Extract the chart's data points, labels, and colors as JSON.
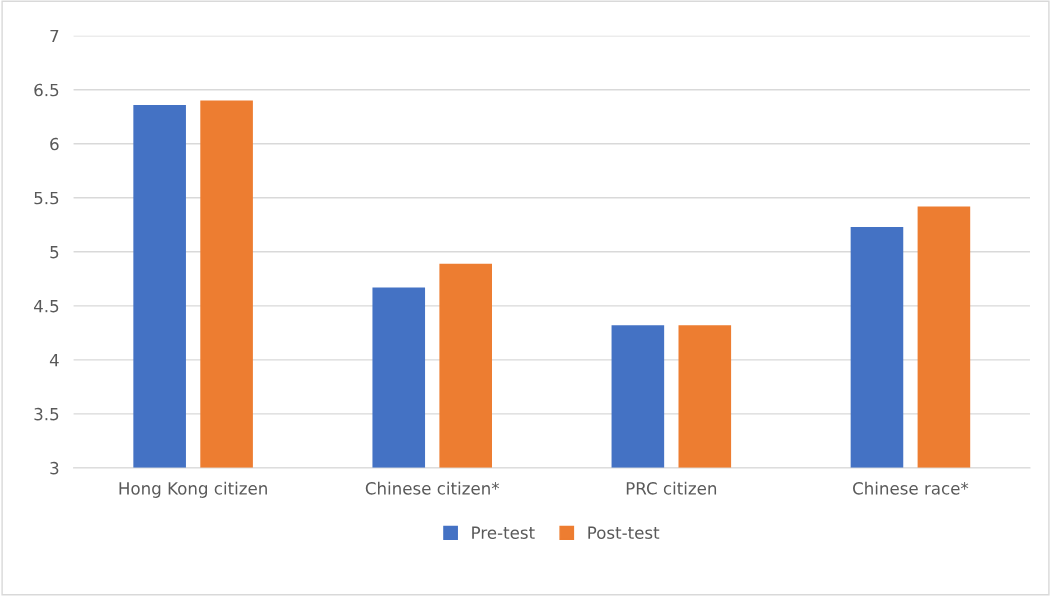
{
  "chart_data": {
    "type": "bar",
    "categories": [
      "Hong Kong citizen",
      "Chinese citizen*",
      "PRC citizen",
      "Chinese race*"
    ],
    "series": [
      {
        "name": "Pre-test",
        "color": "#4472c4",
        "values": [
          6.36,
          4.67,
          4.32,
          5.23
        ]
      },
      {
        "name": "Post-test",
        "color": "#ed7d31",
        "values": [
          6.4,
          4.89,
          4.32,
          5.42
        ]
      }
    ],
    "ylim": [
      3,
      7
    ],
    "yticks": [
      3,
      3.5,
      4,
      4.5,
      5,
      5.5,
      6,
      6.5,
      7
    ],
    "grid": "y",
    "legend": "bottom"
  }
}
